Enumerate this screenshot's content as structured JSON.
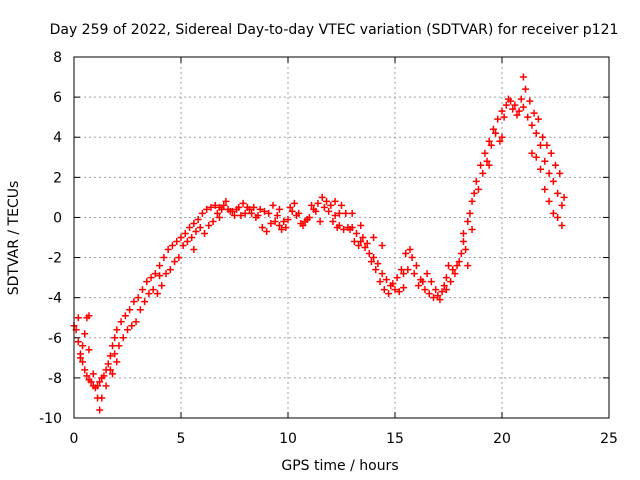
{
  "chart_data": {
    "type": "scatter",
    "title": "Day 259 of 2022, Sidereal Day-to-day VTEC variation (SDTVAR) for receiver p121",
    "xlabel": "GPS time / hours",
    "ylabel": "SDTVAR / TECUs",
    "xlim": [
      0,
      25
    ],
    "ylim": [
      -10,
      8
    ],
    "xticks": [
      "0",
      "5",
      "10",
      "15",
      "20",
      "25"
    ],
    "yticks": [
      "-10",
      "-8",
      "-6",
      "-4",
      "-2",
      "0",
      "2",
      "4",
      "6",
      "8"
    ],
    "grid": true,
    "marker": "plus",
    "series": [
      {
        "color": "#ff0000",
        "points": [
          [
            0.0,
            -5.4
          ],
          [
            0.1,
            -5.6
          ],
          [
            0.2,
            -6.2
          ],
          [
            0.3,
            -6.8
          ],
          [
            0.4,
            -7.2
          ],
          [
            0.5,
            -7.6
          ],
          [
            0.6,
            -7.9
          ],
          [
            0.7,
            -8.1
          ],
          [
            0.8,
            -8.2
          ],
          [
            0.9,
            -8.4
          ],
          [
            1.0,
            -8.5
          ],
          [
            1.1,
            -8.4
          ],
          [
            1.2,
            -8.2
          ],
          [
            1.3,
            -8.0
          ],
          [
            1.4,
            -7.9
          ],
          [
            1.5,
            -7.6
          ],
          [
            1.6,
            -7.3
          ],
          [
            1.7,
            -6.9
          ],
          [
            1.8,
            -6.4
          ],
          [
            1.9,
            -6.0
          ],
          [
            2.0,
            -5.6
          ],
          [
            2.2,
            -5.2
          ],
          [
            2.4,
            -4.9
          ],
          [
            2.6,
            -4.6
          ],
          [
            2.8,
            -4.2
          ],
          [
            3.0,
            -4.0
          ],
          [
            3.2,
            -3.6
          ],
          [
            3.4,
            -3.2
          ],
          [
            3.6,
            -3.0
          ],
          [
            3.8,
            -2.8
          ],
          [
            4.0,
            -2.4
          ],
          [
            4.2,
            -2.0
          ],
          [
            4.4,
            -1.6
          ],
          [
            4.6,
            -1.4
          ],
          [
            4.8,
            -1.2
          ],
          [
            5.0,
            -1.0
          ],
          [
            5.2,
            -0.8
          ],
          [
            5.4,
            -0.5
          ],
          [
            5.6,
            -0.3
          ],
          [
            5.8,
            -0.1
          ],
          [
            6.0,
            0.2
          ],
          [
            6.2,
            0.4
          ],
          [
            6.4,
            0.5
          ],
          [
            6.6,
            0.6
          ],
          [
            6.8,
            0.5
          ],
          [
            7.0,
            0.6
          ],
          [
            7.2,
            0.4
          ],
          [
            7.4,
            0.3
          ],
          [
            7.6,
            0.4
          ],
          [
            7.8,
            0.1
          ],
          [
            8.0,
            0.2
          ],
          [
            8.2,
            0.4
          ],
          [
            8.4,
            0.5
          ],
          [
            8.6,
            0.1
          ],
          [
            8.8,
            -0.5
          ],
          [
            9.0,
            -0.7
          ],
          [
            9.2,
            -0.3
          ],
          [
            9.4,
            -0.2
          ],
          [
            9.6,
            -0.4
          ],
          [
            9.8,
            -0.2
          ],
          [
            10.0,
            -0.1
          ],
          [
            10.2,
            0.3
          ],
          [
            10.4,
            0.1
          ],
          [
            10.6,
            -0.3
          ],
          [
            10.8,
            -0.2
          ],
          [
            11.0,
            0.0
          ],
          [
            11.2,
            0.4
          ],
          [
            11.4,
            0.7
          ],
          [
            11.6,
            1.0
          ],
          [
            11.8,
            0.8
          ],
          [
            12.0,
            0.6
          ],
          [
            12.2,
            0.1
          ],
          [
            12.4,
            -0.4
          ],
          [
            12.6,
            -0.6
          ],
          [
            12.8,
            -0.5
          ],
          [
            13.0,
            -0.5
          ],
          [
            13.2,
            -0.8
          ],
          [
            13.4,
            -1.2
          ],
          [
            13.6,
            -1.5
          ],
          [
            13.8,
            -1.8
          ],
          [
            14.0,
            -2.0
          ],
          [
            14.2,
            -2.3
          ],
          [
            14.4,
            -2.8
          ],
          [
            14.6,
            -3.1
          ],
          [
            14.8,
            -3.4
          ],
          [
            15.0,
            -3.6
          ],
          [
            15.2,
            -3.7
          ],
          [
            15.4,
            -3.5
          ],
          [
            15.6,
            -2.6
          ],
          [
            15.8,
            -2.0
          ],
          [
            16.0,
            -2.4
          ],
          [
            16.2,
            -3.1
          ],
          [
            16.4,
            -3.6
          ],
          [
            16.6,
            -3.8
          ],
          [
            16.8,
            -4.0
          ],
          [
            17.0,
            -3.9
          ],
          [
            17.2,
            -3.7
          ],
          [
            17.4,
            -3.6
          ],
          [
            17.6,
            -3.2
          ],
          [
            17.8,
            -2.8
          ],
          [
            18.0,
            -2.2
          ],
          [
            18.2,
            -1.2
          ],
          [
            18.4,
            -0.2
          ],
          [
            18.6,
            0.8
          ],
          [
            18.8,
            1.8
          ],
          [
            19.0,
            2.6
          ],
          [
            19.2,
            3.2
          ],
          [
            19.4,
            3.8
          ],
          [
            19.6,
            4.4
          ],
          [
            19.8,
            4.9
          ],
          [
            20.0,
            5.3
          ],
          [
            20.2,
            5.6
          ],
          [
            20.4,
            5.8
          ],
          [
            20.6,
            5.6
          ],
          [
            20.8,
            5.3
          ],
          [
            21.0,
            5.5
          ],
          [
            21.2,
            5.0
          ],
          [
            21.4,
            4.6
          ],
          [
            21.6,
            4.2
          ],
          [
            21.8,
            3.6
          ],
          [
            22.0,
            2.8
          ],
          [
            22.2,
            2.2
          ],
          [
            22.4,
            1.8
          ],
          [
            22.6,
            1.2
          ],
          [
            22.8,
            0.6
          ],
          [
            0.2,
            -5.0
          ],
          [
            0.4,
            -6.4
          ],
          [
            0.6,
            -5.0
          ],
          [
            0.7,
            -6.6
          ],
          [
            0.9,
            -7.8
          ],
          [
            1.1,
            -9.0
          ],
          [
            1.2,
            -9.6
          ],
          [
            1.3,
            -9.0
          ],
          [
            1.5,
            -8.4
          ],
          [
            1.7,
            -7.6
          ],
          [
            1.9,
            -6.8
          ],
          [
            2.1,
            -6.4
          ],
          [
            2.3,
            -6.0
          ],
          [
            2.5,
            -5.6
          ],
          [
            2.7,
            -5.4
          ],
          [
            2.9,
            -5.2
          ],
          [
            3.1,
            -4.6
          ],
          [
            3.3,
            -4.2
          ],
          [
            3.5,
            -3.8
          ],
          [
            3.7,
            -3.6
          ],
          [
            3.9,
            -3.8
          ],
          [
            4.1,
            -3.4
          ],
          [
            4.3,
            -2.8
          ],
          [
            4.5,
            -2.6
          ],
          [
            4.7,
            -2.2
          ],
          [
            4.9,
            -2.0
          ],
          [
            5.1,
            -1.4
          ],
          [
            5.3,
            -1.2
          ],
          [
            5.5,
            -1.0
          ],
          [
            5.7,
            -0.7
          ],
          [
            5.9,
            -0.5
          ],
          [
            6.1,
            -0.8
          ],
          [
            6.3,
            -0.4
          ],
          [
            6.5,
            -0.2
          ],
          [
            6.7,
            0.2
          ],
          [
            6.9,
            0.4
          ],
          [
            7.1,
            0.8
          ],
          [
            7.3,
            0.3
          ],
          [
            7.5,
            0.1
          ],
          [
            7.7,
            0.5
          ],
          [
            7.9,
            0.7
          ],
          [
            8.1,
            0.5
          ],
          [
            8.3,
            0.2
          ],
          [
            8.5,
            0.0
          ],
          [
            8.7,
            0.4
          ],
          [
            8.9,
            0.3
          ],
          [
            9.1,
            0.2
          ],
          [
            9.3,
            0.6
          ],
          [
            9.5,
            0.1
          ],
          [
            9.7,
            -0.6
          ],
          [
            9.9,
            -0.5
          ],
          [
            10.1,
            0.5
          ],
          [
            10.3,
            0.7
          ],
          [
            10.5,
            0.2
          ],
          [
            10.7,
            -0.4
          ],
          [
            10.9,
            -0.1
          ],
          [
            11.1,
            0.6
          ],
          [
            11.3,
            0.3
          ],
          [
            11.5,
            -0.2
          ],
          [
            11.7,
            0.5
          ],
          [
            11.9,
            0.3
          ],
          [
            12.1,
            -0.2
          ],
          [
            12.3,
            -0.5
          ],
          [
            12.5,
            0.6
          ],
          [
            12.7,
            0.2
          ],
          [
            12.9,
            -0.6
          ],
          [
            13.1,
            -1.2
          ],
          [
            13.3,
            -1.4
          ],
          [
            13.5,
            -1.0
          ],
          [
            13.7,
            -1.3
          ],
          [
            13.9,
            -2.2
          ],
          [
            14.1,
            -2.6
          ],
          [
            14.3,
            -3.2
          ],
          [
            14.5,
            -3.6
          ],
          [
            14.7,
            -3.8
          ],
          [
            14.9,
            -3.3
          ],
          [
            15.1,
            -3.0
          ],
          [
            15.3,
            -2.6
          ],
          [
            15.5,
            -1.8
          ],
          [
            15.7,
            -1.6
          ],
          [
            15.9,
            -2.8
          ],
          [
            16.1,
            -3.4
          ],
          [
            16.3,
            -3.2
          ],
          [
            16.5,
            -2.8
          ],
          [
            16.7,
            -3.2
          ],
          [
            16.9,
            -3.6
          ],
          [
            17.1,
            -4.1
          ],
          [
            17.3,
            -3.4
          ],
          [
            17.5,
            -2.4
          ],
          [
            17.7,
            -2.6
          ],
          [
            17.9,
            -2.4
          ],
          [
            18.1,
            -1.8
          ],
          [
            18.3,
            -1.6
          ],
          [
            18.5,
            0.2
          ],
          [
            18.7,
            1.2
          ],
          [
            18.9,
            1.4
          ],
          [
            19.1,
            2.2
          ],
          [
            19.3,
            2.8
          ],
          [
            19.5,
            3.6
          ],
          [
            19.7,
            4.2
          ],
          [
            19.9,
            3.8
          ],
          [
            20.1,
            5.0
          ],
          [
            20.3,
            5.9
          ],
          [
            20.5,
            5.4
          ],
          [
            20.7,
            5.1
          ],
          [
            20.9,
            5.9
          ],
          [
            21.0,
            7.0
          ],
          [
            21.1,
            6.4
          ],
          [
            21.3,
            5.8
          ],
          [
            21.5,
            5.2
          ],
          [
            21.7,
            4.9
          ],
          [
            21.9,
            4.0
          ],
          [
            22.1,
            3.6
          ],
          [
            22.3,
            3.2
          ],
          [
            22.5,
            2.6
          ],
          [
            22.7,
            2.2
          ],
          [
            22.9,
            1.0
          ],
          [
            22.0,
            1.4
          ],
          [
            22.2,
            0.8
          ],
          [
            22.4,
            0.2
          ],
          [
            22.6,
            0.0
          ],
          [
            22.8,
            -0.4
          ],
          [
            21.8,
            2.4
          ],
          [
            21.6,
            3.0
          ],
          [
            21.4,
            3.2
          ],
          [
            19.4,
            2.6
          ],
          [
            20.0,
            4.0
          ],
          [
            18.4,
            -2.4
          ],
          [
            18.2,
            -0.8
          ],
          [
            12.2,
            0.8
          ],
          [
            12.4,
            0.2
          ],
          [
            13.0,
            0.2
          ],
          [
            13.4,
            -0.4
          ],
          [
            14.0,
            -1.0
          ],
          [
            14.4,
            -1.4
          ],
          [
            15.4,
            -2.8
          ],
          [
            17.4,
            -3.0
          ],
          [
            18.6,
            -0.6
          ],
          [
            5.6,
            -1.6
          ],
          [
            6.8,
            0.0
          ],
          [
            9.6,
            0.4
          ],
          [
            1.8,
            -7.8
          ],
          [
            2.0,
            -7.2
          ],
          [
            0.5,
            -5.8
          ],
          [
            0.7,
            -4.9
          ],
          [
            0.3,
            -7.0
          ],
          [
            4.0,
            -2.9
          ]
        ]
      }
    ]
  }
}
